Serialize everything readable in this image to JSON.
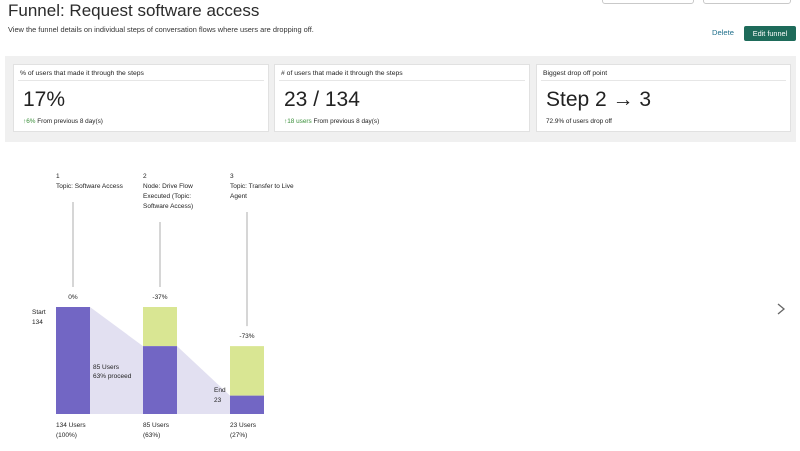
{
  "header": {
    "title": "Funnel: Request software access",
    "description": "View the funnel details on individual steps of conversation flows where users are dropping off.",
    "delete_label": "Delete",
    "edit_label": "Edit funnel"
  },
  "stats": [
    {
      "label": "% of users that made it through the steps",
      "value": "17%",
      "delta": "6%",
      "sub": "From previous 8 day(s)"
    },
    {
      "label": "# of users that made it through the steps",
      "value": "23 / 134",
      "delta": "18 users",
      "sub": "From previous 8 day(s)"
    },
    {
      "label": "Biggest drop off point",
      "value": "Step 2 → 3",
      "sub": "72.9% of users drop off"
    }
  ],
  "chart_data": {
    "type": "bar",
    "y_max": 134,
    "start_label": "Start",
    "start_value": "134",
    "end_label": "End",
    "end_value": "23",
    "colors": {
      "remaining": "#7266c4",
      "dropped": "#d9e693",
      "flow": "#e2e0f1",
      "stem": "#9a9a9a"
    },
    "steps": [
      {
        "number": "1",
        "name": [
          "Topic: Software Access"
        ],
        "change": "0%",
        "users": 134,
        "dropped": 0,
        "users_label": "134 Users",
        "pct_label": "(100%)"
      },
      {
        "number": "2",
        "name": [
          "Node: Drive Flow",
          "Executed (Topic:",
          "Software Access)"
        ],
        "change": "-37%",
        "users": 85,
        "dropped": 49,
        "users_label": "85 Users",
        "pct_label": "(63%)"
      },
      {
        "number": "3",
        "name": [
          "Topic: Transfer to Live",
          "Agent"
        ],
        "change": "-73%",
        "users": 23,
        "dropped": 62,
        "users_label": "23 Users",
        "pct_label": "(27%)"
      }
    ],
    "flow_labels": [
      {
        "line1": "85 Users",
        "line2": "63% proceed"
      }
    ]
  }
}
